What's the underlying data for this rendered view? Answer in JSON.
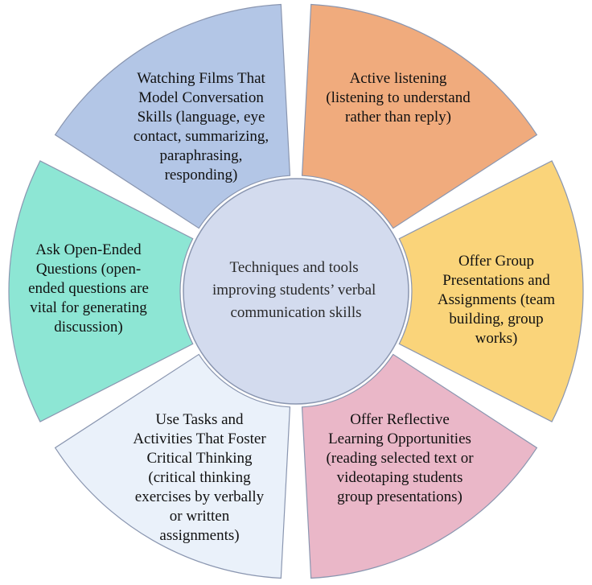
{
  "center": {
    "lines": [
      "Techniques and tools",
      "improving students’ verbal",
      "communication skills"
    ],
    "color": "#d3dbee"
  },
  "segments": [
    {
      "id": "active-listening",
      "color": "#f0ab7d",
      "lines": [
        "Active listening",
        "(listening to understand",
        "rather than reply)"
      ]
    },
    {
      "id": "group-presentations",
      "color": "#fad47a",
      "lines": [
        "Offer Group",
        "Presentations and",
        "Assignments  (team",
        "building, group",
        "works)"
      ]
    },
    {
      "id": "reflective-learning",
      "color": "#eab7c8",
      "lines": [
        "Offer Reflective",
        "Learning Opportunities",
        "(reading selected text or",
        "videotaping students",
        "group presentations)"
      ]
    },
    {
      "id": "critical-thinking",
      "color": "#eaf1fa",
      "lines": [
        "Use Tasks and",
        "Activities That Foster",
        "Critical Thinking",
        "(critical thinking",
        "exercises by verbally",
        "or written",
        "assignments)"
      ]
    },
    {
      "id": "open-ended-questions",
      "color": "#8de6d4",
      "lines": [
        "Ask Open-Ended",
        "Questions  (open-",
        "ended questions are",
        "vital for generating",
        "discussion)"
      ]
    },
    {
      "id": "watching-films",
      "color": "#b3c6e6",
      "lines": [
        "Watching Films That",
        "Model Conversation",
        "Skills (language, eye",
        "contact, summarizing,",
        "paraphrasing,",
        "responding)"
      ]
    }
  ]
}
